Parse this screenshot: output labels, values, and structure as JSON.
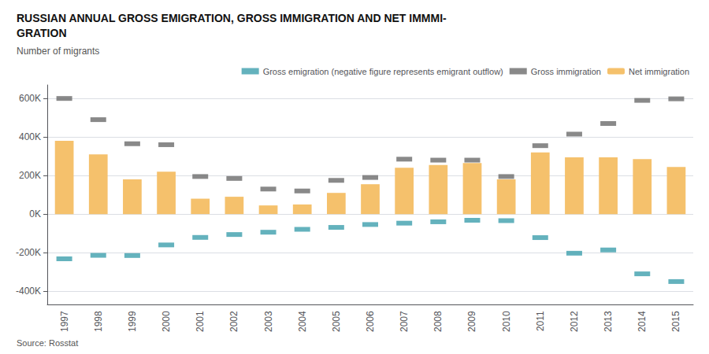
{
  "chart_data": {
    "type": "bar",
    "title": "RUSSIAN ANNUAL GROSS EMIGRATION, GROSS IMMIGRATION AND NET IMMMI-\nGRATION",
    "subtitle": "Number of migrants",
    "annotations": [
      "Source: Rosstat"
    ],
    "categories": [
      "1997",
      "1998",
      "1999",
      "2000",
      "2001",
      "2002",
      "2003",
      "2004",
      "2005",
      "2006",
      "2007",
      "2008",
      "2009",
      "2010",
      "2011",
      "2012",
      "2013",
      "2014",
      "2015"
    ],
    "series": [
      {
        "name": "Gross emigration (negative figure represents emigrant outflow)",
        "type": "scatter",
        "marker": "dash",
        "color": "#3d9fad",
        "values": [
          -232000,
          -214000,
          -215000,
          -160000,
          -121000,
          -106000,
          -94000,
          -79000,
          -69000,
          -54000,
          -47000,
          -40000,
          -32000,
          -34000,
          -122000,
          -203000,
          -186000,
          -310000,
          -350000
        ]
      },
      {
        "name": "Gross immigration",
        "type": "scatter",
        "marker": "dash",
        "color": "#6b6b6b",
        "values": [
          600000,
          490000,
          365000,
          360000,
          195000,
          185000,
          130000,
          120000,
          175000,
          190000,
          285000,
          280000,
          280000,
          195000,
          355000,
          415000,
          470000,
          590000,
          598000
        ]
      },
      {
        "name": "Net immigration",
        "type": "bar",
        "color": "#f5c16c",
        "values": [
          380000,
          310000,
          180000,
          220000,
          80000,
          90000,
          45000,
          50000,
          110000,
          155000,
          240000,
          255000,
          265000,
          180000,
          320000,
          295000,
          295000,
          285000,
          245000
        ]
      }
    ],
    "ylim": [
      -470000,
      670000
    ],
    "yticks": [
      {
        "value": -400000,
        "label": "-400K"
      },
      {
        "value": -200000,
        "label": "-200K"
      },
      {
        "value": 0,
        "label": "0K"
      },
      {
        "value": 200000,
        "label": "200K"
      },
      {
        "value": 400000,
        "label": "400K"
      },
      {
        "value": 600000,
        "label": "600K"
      }
    ],
    "grid": true,
    "legend": "upper right"
  }
}
